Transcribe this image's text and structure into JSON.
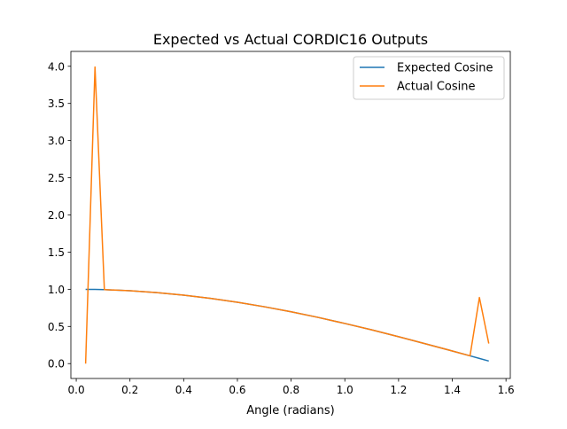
{
  "chart_data": {
    "type": "line",
    "title": "Expected vs Actual CORDIC16 Outputs",
    "xlabel": "Angle (radians)",
    "ylabel": "",
    "xlim": [
      -0.02,
      1.616
    ],
    "ylim": [
      -0.2,
      4.2
    ],
    "x_ticks": [
      0.0,
      0.2,
      0.4,
      0.6,
      0.8,
      1.0,
      1.2,
      1.4,
      1.6
    ],
    "x_tick_labels": [
      "0.0",
      "0.2",
      "0.4",
      "0.6",
      "0.8",
      "1.0",
      "1.2",
      "1.4",
      "1.6"
    ],
    "y_ticks": [
      0.0,
      0.5,
      1.0,
      1.5,
      2.0,
      2.5,
      3.0,
      3.5,
      4.0
    ],
    "y_tick_labels": [
      "0.0",
      "0.5",
      "1.0",
      "1.5",
      "2.0",
      "2.5",
      "3.0",
      "3.5",
      "4.0"
    ],
    "grid": false,
    "legend": "top-right",
    "series": [
      {
        "name": "Expected Cosine",
        "color": "#1f77b4",
        "x": [
          0.0349,
          0.0698,
          0.1047,
          0.2,
          0.3,
          0.4,
          0.5,
          0.6,
          0.7,
          0.8,
          0.9,
          1.0,
          1.1,
          1.2,
          1.3,
          1.4,
          1.4661,
          1.501,
          1.5359
        ],
        "y": [
          0.999,
          0.998,
          0.995,
          0.98,
          0.955,
          0.921,
          0.878,
          0.825,
          0.765,
          0.697,
          0.622,
          0.54,
          0.454,
          0.362,
          0.267,
          0.17,
          0.105,
          0.07,
          0.035
        ]
      },
      {
        "name": "Actual Cosine",
        "color": "#ff7f0e",
        "x": [
          0.0349,
          0.0698,
          0.1047,
          0.2,
          0.3,
          0.4,
          0.5,
          0.6,
          0.7,
          0.8,
          0.9,
          1.0,
          1.1,
          1.2,
          1.3,
          1.4,
          1.4661,
          1.501,
          1.5359
        ],
        "y": [
          0.0,
          3.99,
          0.995,
          0.98,
          0.955,
          0.921,
          0.878,
          0.825,
          0.765,
          0.697,
          0.622,
          0.54,
          0.454,
          0.362,
          0.267,
          0.17,
          0.105,
          0.89,
          0.27
        ]
      }
    ]
  }
}
